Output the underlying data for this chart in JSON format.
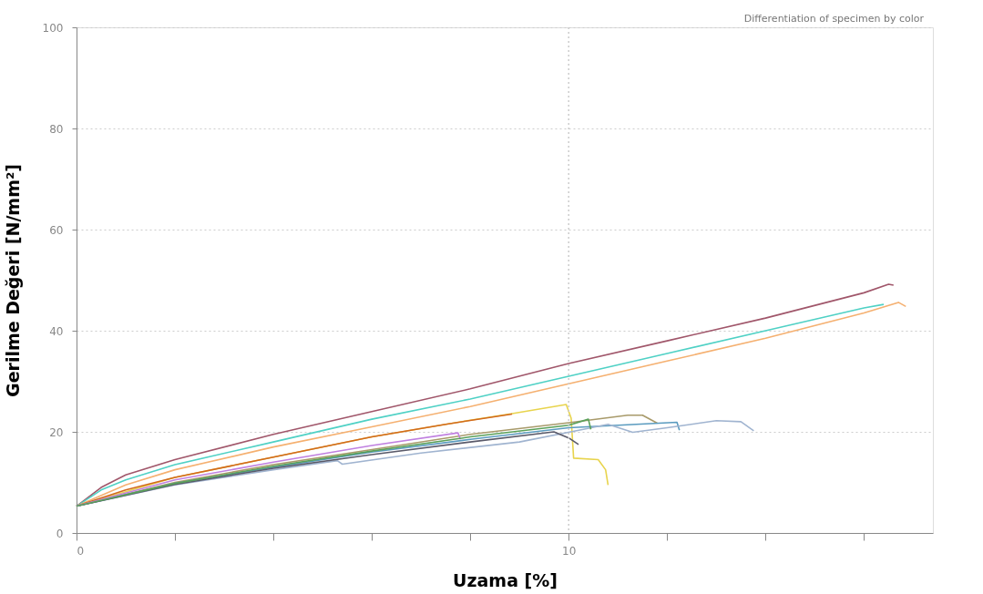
{
  "chart_data": {
    "type": "line",
    "xlabel": "Uzama [%]",
    "ylabel": "Gerilme Değeri [N/mm²]",
    "annotations": [
      "Differentiation of specimen by color"
    ],
    "xlim": [
      0,
      17.4
    ],
    "xticks": [
      0,
      {
        "value": 2,
        "label": null
      },
      {
        "value": 4,
        "label": null
      },
      {
        "value": 6,
        "label": null
      },
      {
        "value": 8,
        "label": null
      },
      10,
      {
        "value": 12,
        "label": null
      },
      {
        "value": 14,
        "label": null
      },
      {
        "value": 16,
        "label": null
      }
    ],
    "ylim": [
      0,
      100
    ],
    "yticks": [
      0,
      20,
      40,
      60,
      80,
      100
    ],
    "grid": "y",
    "legend": false,
    "marker": "none",
    "line_style": "solid",
    "ref_lines": [
      {
        "axis": "x",
        "value": 10,
        "color": "#cccccc",
        "line_style": "dotted"
      }
    ],
    "series": [
      {
        "color": "#a0566a",
        "x": [
          0,
          0.5,
          1,
          2,
          4,
          6,
          8,
          10,
          12,
          14,
          16,
          16.5,
          16.6
        ],
        "values": [
          5.3,
          9,
          11.5,
          14.5,
          19.5,
          24,
          28.5,
          33.5,
          38,
          42.5,
          47.5,
          49.2,
          49
        ]
      },
      {
        "color": "#4fd1c5",
        "x": [
          0,
          0.5,
          1,
          2,
          4,
          6,
          8,
          10,
          12,
          14,
          16,
          16.4
        ],
        "values": [
          5.3,
          8.5,
          10.5,
          13.5,
          18,
          22.5,
          26.5,
          31,
          35.5,
          40,
          44.5,
          45.2
        ]
      },
      {
        "color": "#f5b070",
        "x": [
          0,
          1,
          2,
          4,
          6,
          8,
          10,
          12,
          14,
          16,
          16.7,
          16.85
        ],
        "values": [
          5.3,
          9.5,
          12.5,
          17,
          21,
          25,
          29.5,
          34,
          38.5,
          43.5,
          45.6,
          44.8
        ]
      },
      {
        "color": "#e8d44d",
        "x": [
          0,
          2,
          4,
          6,
          8,
          8.85,
          9.95,
          10.05,
          10.1,
          10.6,
          10.75,
          10.8
        ],
        "values": [
          5.3,
          11,
          15,
          19,
          22.3,
          23.6,
          25.4,
          22.7,
          14.8,
          14.5,
          12.5,
          9.5
        ]
      },
      {
        "color": "#d2691e",
        "x": [
          0,
          1,
          2,
          4,
          6,
          7.5,
          8.85
        ],
        "values": [
          5.3,
          8.5,
          11,
          15,
          19,
          21.5,
          23.5
        ]
      },
      {
        "color": "#a89a6a",
        "x": [
          0,
          2,
          4,
          6,
          8,
          10,
          11.2,
          11.5,
          11.8
        ],
        "values": [
          5.3,
          10,
          13.5,
          16.5,
          19.5,
          21.8,
          23.3,
          23.3,
          21.7
        ]
      },
      {
        "color": "#5a9bbf",
        "x": [
          0,
          2,
          4,
          6,
          8,
          10,
          12.2,
          12.25
        ],
        "values": [
          5.3,
          9.8,
          13,
          16,
          18.5,
          20.8,
          21.9,
          20.3
        ]
      },
      {
        "color": "#a0b4d0",
        "x": [
          0,
          2,
          4,
          5.3,
          5.4,
          7,
          9,
          10.3,
          10.8,
          11.3,
          12,
          13,
          13.5,
          13.76
        ],
        "values": [
          5.3,
          9.5,
          12.5,
          14.3,
          13.6,
          15.8,
          18,
          20.5,
          21.5,
          19.9,
          20.8,
          22.2,
          22,
          20.2
        ]
      },
      {
        "color": "#5a5a6a",
        "x": [
          0,
          2,
          4,
          6,
          8,
          9.7,
          10,
          10.2
        ],
        "values": [
          5.3,
          9.6,
          12.8,
          15.5,
          18,
          20,
          18.8,
          17.5
        ]
      },
      {
        "color": "#c080e0",
        "x": [
          0,
          2,
          4,
          6,
          7.75,
          7.8
        ],
        "values": [
          5.3,
          10.5,
          14,
          17.3,
          19.8,
          18.5
        ]
      },
      {
        "color": "#5aa05a",
        "x": [
          0,
          2,
          4,
          6,
          8,
          10,
          10.4,
          10.45
        ],
        "values": [
          5.3,
          9.8,
          13.2,
          16.2,
          19,
          21.3,
          22.5,
          20.5
        ]
      }
    ]
  }
}
